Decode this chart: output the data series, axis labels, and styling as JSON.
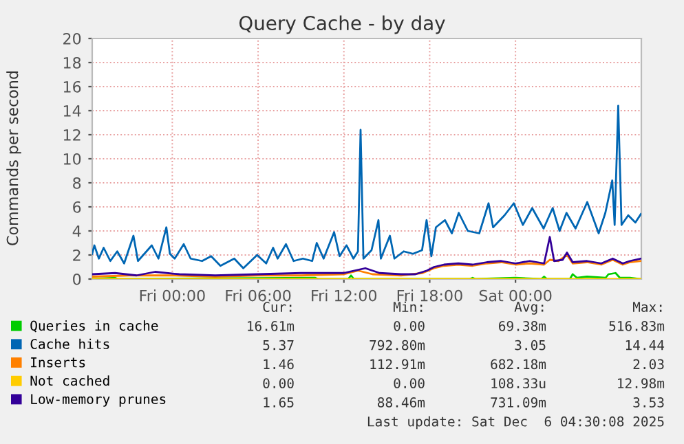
{
  "chart_data": {
    "type": "line",
    "title": "Query Cache - by day",
    "ylabel": "Commands per second",
    "xlim": [
      "2025-12-04T18:24",
      "2025-12-06T08:48"
    ],
    "xticks": [
      {
        "value": "2025-12-05T00:00",
        "label": "Fri 00:00"
      },
      {
        "value": "2025-12-05T06:00",
        "label": "Fri 06:00"
      },
      {
        "value": "2025-12-05T12:00",
        "label": "Fri 12:00"
      },
      {
        "value": "2025-12-05T18:00",
        "label": "Fri 18:00"
      },
      {
        "value": "2025-12-06T00:00",
        "label": "Sat 00:00"
      }
    ],
    "ylim": [
      0,
      20
    ],
    "yticks": [
      0,
      2,
      4,
      6,
      8,
      10,
      12,
      14,
      16,
      18,
      20
    ],
    "grid": true,
    "legend": "bottom",
    "marker": "none",
    "line_style": "solid",
    "series": [
      {
        "name": "Queries in cache",
        "color": "#00cc00",
        "x": [
          "2025-12-04T18:24",
          "2025-12-04T20:00",
          "2025-12-04T20:12",
          "2025-12-05T10:00",
          "2025-12-05T10:12",
          "2025-12-05T12:18",
          "2025-12-05T12:30",
          "2025-12-05T12:42",
          "2025-12-05T20:48",
          "2025-12-05T21:00",
          "2025-12-05T21:12",
          "2025-12-06T00:00",
          "2025-12-06T01:48",
          "2025-12-06T02:00",
          "2025-12-06T02:12",
          "2025-12-06T03:48",
          "2025-12-06T04:00",
          "2025-12-06T04:18",
          "2025-12-06T05:00",
          "2025-12-06T06:18",
          "2025-12-06T06:30",
          "2025-12-06T07:00",
          "2025-12-06T07:18",
          "2025-12-06T08:00",
          "2025-12-06T08:46"
        ],
        "values": [
          0,
          0.1,
          0,
          0.1,
          0,
          0,
          0.3,
          0,
          0,
          0.1,
          0,
          0.1,
          0,
          0.2,
          0,
          0,
          0.4,
          0.1,
          0.2,
          0.1,
          0.4,
          0.5,
          0.1,
          0.1,
          0
        ]
      },
      {
        "name": "Cache hits",
        "color": "#0066b3",
        "x": [
          "2025-12-04T18:24",
          "2025-12-04T18:33",
          "2025-12-04T18:52",
          "2025-12-04T19:12",
          "2025-12-04T19:40",
          "2025-12-04T20:09",
          "2025-12-04T20:38",
          "2025-12-04T21:17",
          "2025-12-04T21:36",
          "2025-12-04T22:34",
          "2025-12-04T23:02",
          "2025-12-04T23:35",
          "2025-12-04T23:50",
          "2025-12-05T00:10",
          "2025-12-05T00:48",
          "2025-12-05T01:17",
          "2025-12-05T02:05",
          "2025-12-05T02:43",
          "2025-12-05T03:22",
          "2025-12-05T04:20",
          "2025-12-05T04:58",
          "2025-12-05T05:56",
          "2025-12-05T06:34",
          "2025-12-05T07:03",
          "2025-12-05T07:22",
          "2025-12-05T07:57",
          "2025-12-05T08:29",
          "2025-12-05T09:08",
          "2025-12-05T09:47",
          "2025-12-05T10:06",
          "2025-12-05T10:35",
          "2025-12-05T11:19",
          "2025-12-05T11:42",
          "2025-12-05T12:11",
          "2025-12-05T12:40",
          "2025-12-05T12:59",
          "2025-12-05T13:10",
          "2025-12-05T13:22",
          "2025-12-05T13:56",
          "2025-12-05T14:25",
          "2025-12-05T14:35",
          "2025-12-05T15:13",
          "2025-12-05T15:32",
          "2025-12-05T16:11",
          "2025-12-05T16:50",
          "2025-12-05T17:28",
          "2025-12-05T17:47",
          "2025-12-05T18:07",
          "2025-12-05T18:26",
          "2025-12-05T19:04",
          "2025-12-05T19:33",
          "2025-12-05T20:02",
          "2025-12-05T20:40",
          "2025-12-05T21:28",
          "2025-12-05T22:07",
          "2025-12-05T22:26",
          "2025-12-05T23:14",
          "2025-12-05T23:53",
          "2025-12-06T00:31",
          "2025-12-06T01:10",
          "2025-12-06T01:58",
          "2025-12-06T02:36",
          "2025-12-06T03:05",
          "2025-12-06T03:34",
          "2025-12-06T04:12",
          "2025-12-06T05:01",
          "2025-12-06T05:49",
          "2025-12-06T06:17",
          "2025-12-06T06:46",
          "2025-12-06T06:56",
          "2025-12-06T07:11",
          "2025-12-06T07:25",
          "2025-12-06T07:53",
          "2025-12-06T08:23",
          "2025-12-06T08:46"
        ],
        "values": [
          2.1,
          2.8,
          1.7,
          2.6,
          1.5,
          2.3,
          1.3,
          3.6,
          1.5,
          2.8,
          1.7,
          4.3,
          2.1,
          1.7,
          2.9,
          1.7,
          1.5,
          1.9,
          1.1,
          1.7,
          0.9,
          2.0,
          1.3,
          2.6,
          1.7,
          2.9,
          1.5,
          1.7,
          1.5,
          3.0,
          1.7,
          3.9,
          1.9,
          2.8,
          1.7,
          2.3,
          12.4,
          1.7,
          2.4,
          4.9,
          1.7,
          3.6,
          1.7,
          2.3,
          2.1,
          2.4,
          4.9,
          1.9,
          4.3,
          4.9,
          3.8,
          5.5,
          4.0,
          3.8,
          6.3,
          4.3,
          5.3,
          6.3,
          4.5,
          5.9,
          4.2,
          5.9,
          4.0,
          5.5,
          4.2,
          6.4,
          3.8,
          5.5,
          8.2,
          4.5,
          14.4,
          4.5,
          5.3,
          4.7,
          5.4
        ]
      },
      {
        "name": "Inserts",
        "color": "#ff8000",
        "x": [
          "2025-12-04T18:24",
          "2025-12-04T21:00",
          "2025-12-05T00:00",
          "2025-12-05T03:00",
          "2025-12-05T06:00",
          "2025-12-05T09:00",
          "2025-12-05T12:00",
          "2025-12-05T13:00",
          "2025-12-05T14:00",
          "2025-12-05T16:00",
          "2025-12-05T17:30",
          "2025-12-05T18:18",
          "2025-12-05T19:00",
          "2025-12-05T20:00",
          "2025-12-05T21:00",
          "2025-12-05T22:00",
          "2025-12-05T23:00",
          "2025-12-06T00:00",
          "2025-12-06T01:00",
          "2025-12-06T02:00",
          "2025-12-06T02:24",
          "2025-12-06T03:00",
          "2025-12-06T03:36",
          "2025-12-06T04:00",
          "2025-12-06T05:00",
          "2025-12-06T06:00",
          "2025-12-06T06:48",
          "2025-12-06T07:30",
          "2025-12-06T08:00",
          "2025-12-06T08:46"
        ],
        "values": [
          0.2,
          0.3,
          0.3,
          0.2,
          0.3,
          0.3,
          0.4,
          0.7,
          0.4,
          0.3,
          0.5,
          0.9,
          1.1,
          1.2,
          1.1,
          1.3,
          1.4,
          1.2,
          1.3,
          1.2,
          1.6,
          1.5,
          2.0,
          1.3,
          1.4,
          1.2,
          1.6,
          1.2,
          1.4,
          1.5
        ]
      },
      {
        "name": "Not cached",
        "color": "#ffcc00",
        "x": [
          "2025-12-04T18:24",
          "2025-12-06T08:46"
        ],
        "values": [
          0,
          0
        ]
      },
      {
        "name": "Low-memory prunes",
        "color": "#330099",
        "x": [
          "2025-12-04T18:24",
          "2025-12-04T20:00",
          "2025-12-04T21:30",
          "2025-12-04T22:48",
          "2025-12-05T00:30",
          "2025-12-05T03:00",
          "2025-12-05T06:00",
          "2025-12-05T09:00",
          "2025-12-05T12:00",
          "2025-12-05T13:30",
          "2025-12-05T14:30",
          "2025-12-05T16:00",
          "2025-12-05T17:00",
          "2025-12-05T17:48",
          "2025-12-05T18:18",
          "2025-12-05T19:00",
          "2025-12-05T20:00",
          "2025-12-05T21:00",
          "2025-12-05T22:00",
          "2025-12-05T23:00",
          "2025-12-06T00:00",
          "2025-12-06T01:00",
          "2025-12-06T02:00",
          "2025-12-06T02:24",
          "2025-12-06T02:42",
          "2025-12-06T03:18",
          "2025-12-06T03:36",
          "2025-12-06T04:00",
          "2025-12-06T05:00",
          "2025-12-06T06:00",
          "2025-12-06T06:48",
          "2025-12-06T07:30",
          "2025-12-06T08:00",
          "2025-12-06T08:46"
        ],
        "values": [
          0.4,
          0.5,
          0.3,
          0.6,
          0.4,
          0.3,
          0.4,
          0.5,
          0.5,
          0.9,
          0.5,
          0.4,
          0.4,
          0.7,
          1.0,
          1.2,
          1.3,
          1.2,
          1.4,
          1.5,
          1.3,
          1.5,
          1.3,
          3.5,
          1.5,
          1.6,
          2.2,
          1.4,
          1.5,
          1.3,
          1.7,
          1.3,
          1.5,
          1.7
        ]
      }
    ],
    "annotations": [
      "Cur:",
      "Min:",
      "Avg:",
      "Max:",
      "16.61m",
      "0.00",
      "69.38m",
      "516.83m",
      "5.37",
      "792.80m",
      "3.05",
      "14.44",
      "1.46",
      "112.91m",
      "682.18m",
      "2.03",
      "0.00",
      "0.00",
      "108.33u",
      "12.98m",
      "1.65",
      "88.46m",
      "731.09m",
      "3.53",
      "Last update: Sat Dec  6 04:30:08 2025"
    ]
  }
}
